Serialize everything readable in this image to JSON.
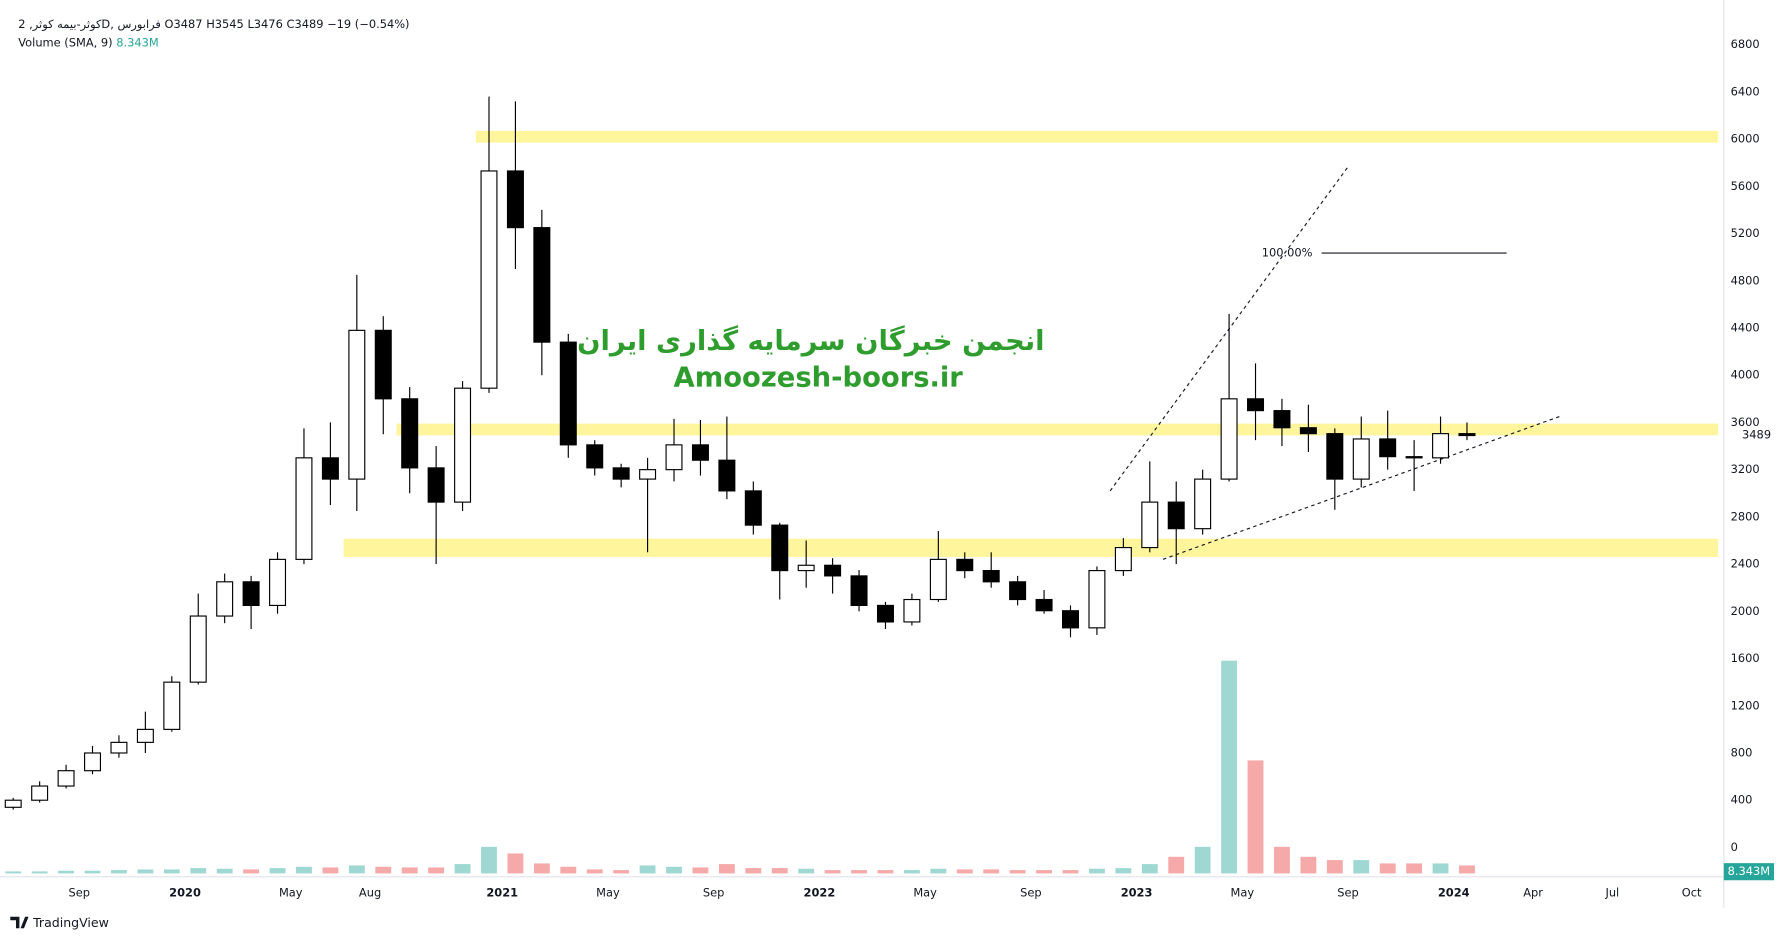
{
  "header": {
    "symbol": "کوثر-بیمه کوثر, 2D, فرابورس",
    "o": "O",
    "open": 3487,
    "h": "H",
    "high": 3545,
    "l": "L",
    "low": 3476,
    "c": "C",
    "close": 3489,
    "change": "−19 (−0.54%)",
    "volume_title": "Volume (SMA, 9)",
    "volume_sma": "8.343M"
  },
  "watermark": [
    "انجمن خبرگان سرمایه گذاری ایران",
    "Amoozesh-boors.ir"
  ],
  "brand": "TradingView",
  "chart_data": {
    "type": "candlestick",
    "x": [
      "2019-06",
      "2019-07",
      "2019-08",
      "2019-09",
      "2019-10",
      "2019-11",
      "2019-12",
      "2020-01",
      "2020-02",
      "2020-03",
      "2020-04",
      "2020-05",
      "2020-06",
      "2020-07",
      "2020-08",
      "2020-09",
      "2020-10",
      "2020-11",
      "2020-12",
      "2021-01",
      "2021-02",
      "2021-03",
      "2021-04",
      "2021-05",
      "2021-06",
      "2021-07",
      "2021-08",
      "2021-09",
      "2021-10",
      "2021-11",
      "2021-12",
      "2022-01",
      "2022-02",
      "2022-03",
      "2022-04",
      "2022-05",
      "2022-06",
      "2022-07",
      "2022-08",
      "2022-09",
      "2022-10",
      "2022-11",
      "2022-12",
      "2023-01",
      "2023-02",
      "2023-03",
      "2023-04",
      "2023-05",
      "2023-06",
      "2023-07",
      "2023-08",
      "2023-09",
      "2023-10",
      "2023-11",
      "2023-12",
      "2024-01"
    ],
    "open": [
      340,
      400,
      520,
      650,
      800,
      890,
      1000,
      1400,
      1960,
      2250,
      2050,
      2440,
      3300,
      3120,
      4380,
      3800,
      3215,
      2925,
      3890,
      5730,
      5250,
      4280,
      3410,
      3215,
      3120,
      3200,
      3410,
      3280,
      3020,
      2730,
      2345,
      2390,
      2300,
      2050,
      1910,
      2100,
      2440,
      2345,
      2250,
      2100,
      2005,
      1860,
      2345,
      2540,
      2925,
      2700,
      3120,
      3800,
      3700,
      3555,
      3505,
      3120,
      3460,
      3310,
      3300,
      3505
    ],
    "high": [
      420,
      560,
      700,
      860,
      950,
      1150,
      1450,
      2150,
      2320,
      2300,
      2500,
      3550,
      3600,
      4850,
      4500,
      3900,
      3400,
      3950,
      6360,
      6320,
      5400,
      4350,
      3450,
      3250,
      3300,
      3630,
      3620,
      3650,
      3100,
      2750,
      2600,
      2450,
      2350,
      2080,
      2150,
      2680,
      2500,
      2500,
      2300,
      2180,
      2050,
      2380,
      2620,
      3270,
      3100,
      3200,
      4520,
      4100,
      3800,
      3750,
      3550,
      3650,
      3700,
      3450,
      3650,
      3600
    ],
    "low": [
      320,
      380,
      500,
      620,
      760,
      800,
      980,
      1380,
      1900,
      1850,
      1980,
      2400,
      2900,
      2850,
      3500,
      3000,
      2400,
      2850,
      3850,
      4900,
      4000,
      3300,
      3150,
      3050,
      2500,
      3100,
      3150,
      2950,
      2650,
      2100,
      2200,
      2150,
      2000,
      1850,
      1880,
      2080,
      2280,
      2200,
      2050,
      1980,
      1780,
      1800,
      2300,
      2500,
      2400,
      2650,
      3100,
      3450,
      3400,
      3350,
      2860,
      3050,
      3200,
      3020,
      3250,
      3450
    ],
    "close": [
      400,
      520,
      650,
      800,
      890,
      1000,
      1400,
      1960,
      2250,
      2050,
      2440,
      3300,
      3120,
      4380,
      3800,
      3215,
      2925,
      3890,
      5730,
      5250,
      4280,
      3410,
      3215,
      3120,
      3200,
      3410,
      3280,
      3020,
      2730,
      2345,
      2390,
      2300,
      2050,
      1910,
      2100,
      2440,
      2345,
      2250,
      2100,
      2005,
      1860,
      2345,
      2540,
      2925,
      2700,
      3120,
      3800,
      3700,
      3555,
      3505,
      3120,
      3460,
      3310,
      3300,
      3505,
      3489
    ],
    "volume": [
      3,
      3,
      4,
      4,
      5,
      6,
      6,
      8,
      7,
      6,
      8,
      10,
      9,
      12,
      10,
      9,
      9,
      14,
      40,
      30,
      15,
      10,
      6,
      5,
      12,
      10,
      9,
      14,
      8,
      8,
      7,
      5,
      5,
      5,
      5,
      7,
      6,
      6,
      5,
      5,
      5,
      7,
      8,
      14,
      25,
      40,
      320,
      170,
      40,
      25,
      20,
      20,
      15,
      15,
      15,
      12
    ],
    "xlim": [
      "2019-06",
      "2024-11"
    ],
    "xticks": [
      {
        "value": "2019-09",
        "label": "Sep"
      },
      {
        "value": "2020-01",
        "label": "2020"
      },
      {
        "value": "2020-05",
        "label": "May"
      },
      {
        "value": "2020-08",
        "label": "Aug"
      },
      {
        "value": "2021-01",
        "label": "2021"
      },
      {
        "value": "2021-05",
        "label": "May"
      },
      {
        "value": "2021-09",
        "label": "Sep"
      },
      {
        "value": "2022-01",
        "label": "2022"
      },
      {
        "value": "2022-05",
        "label": "May"
      },
      {
        "value": "2022-09",
        "label": "Sep"
      },
      {
        "value": "2023-01",
        "label": "2023"
      },
      {
        "value": "2023-05",
        "label": "May"
      },
      {
        "value": "2023-09",
        "label": "Sep"
      },
      {
        "value": "2024-01",
        "label": "2024"
      },
      {
        "value": "2024-04",
        "label": "Apr"
      },
      {
        "value": "2024-07",
        "label": "Jul"
      },
      {
        "value": "2024-10",
        "label": "Oct"
      }
    ],
    "ylim": [
      -220,
      7100
    ],
    "yticks": [
      0,
      400,
      800,
      1200,
      1600,
      2000,
      2400,
      2800,
      3200,
      3600,
      4000,
      4400,
      4800,
      5200,
      5600,
      6000,
      6400,
      6800
    ],
    "volume_ylim": [
      0,
      1300
    ],
    "grid": false,
    "up_color": "#ffffff",
    "down_color": "#000000",
    "wick_color": "#000000",
    "volume_up_color": "#9fd8d2",
    "volume_down_color": "#f5a9a8",
    "zones": [
      {
        "x": "2020-12",
        "y": [
          5970,
          6070
        ]
      },
      {
        "x": "2020-09",
        "y": [
          3490,
          3590
        ]
      },
      {
        "x": "2020-07",
        "y": [
          2460,
          2615
        ]
      }
    ],
    "zone_color": "#fff59d",
    "trend_lines": [
      {
        "x": [
          "2022-12",
          "2023-09"
        ],
        "y": [
          3020,
          5765
        ]
      },
      {
        "x": [
          "2023-02",
          "2024-05"
        ],
        "y": [
          2440,
          3650
        ]
      }
    ],
    "fib": {
      "label": "100.00%",
      "x": [
        "2023-08",
        "2024-03"
      ],
      "y": 5035
    }
  }
}
